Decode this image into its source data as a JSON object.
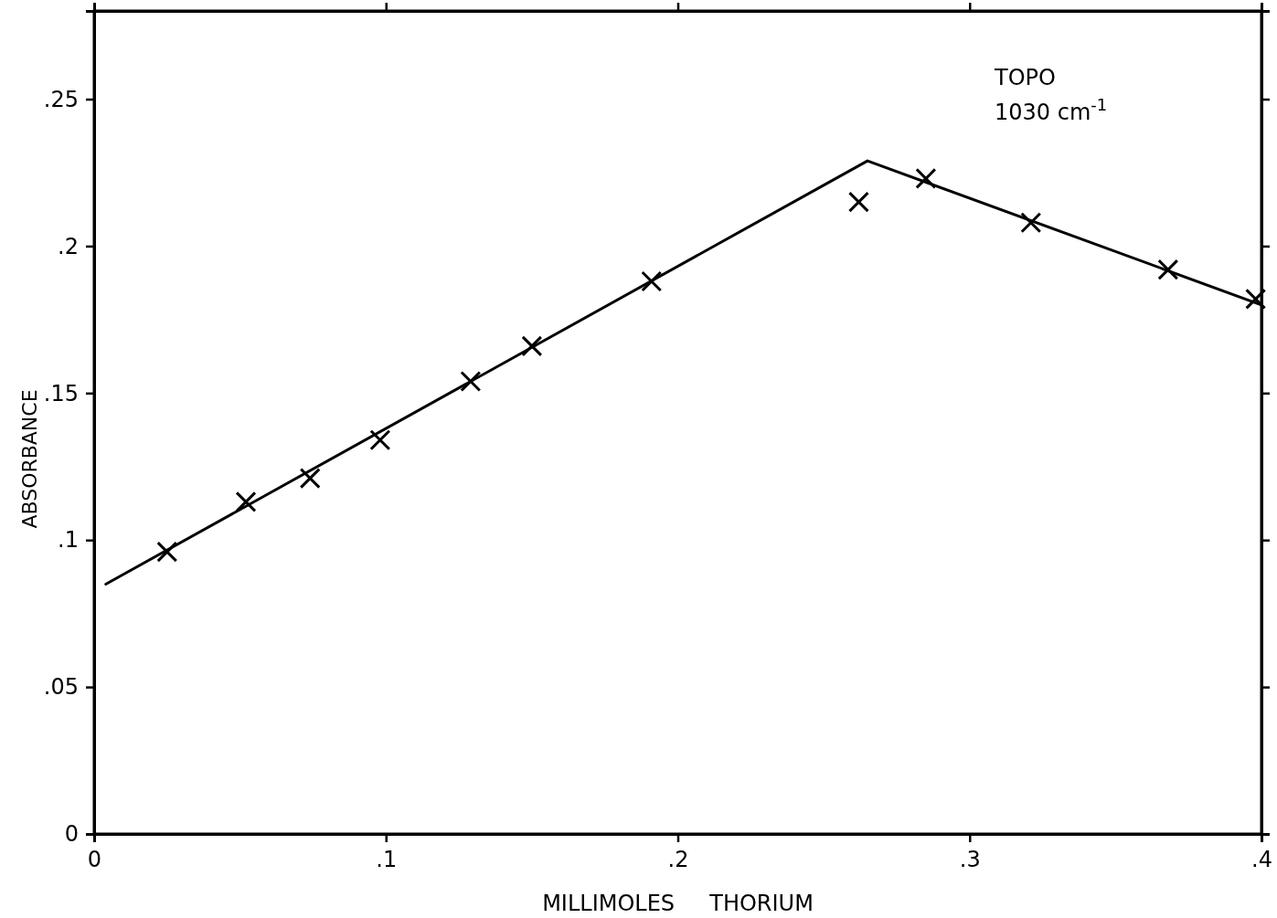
{
  "chart_data": {
    "type": "scatter",
    "xlabel": "MILLIMOLES     THORIUM",
    "ylabel": "ABSORBANCE",
    "annotations": [
      "TOPO",
      "1030 cm$^{-1}$"
    ],
    "xlim": [
      0,
      0.4
    ],
    "xticks": [
      0,
      {
        "value": 0.1,
        "label": ".1"
      },
      {
        "value": 0.2,
        "label": ".2"
      },
      {
        "value": 0.3,
        "label": ".3"
      },
      {
        "value": 0.4,
        "label": ".4"
      }
    ],
    "ylim": [
      0,
      0.28
    ],
    "yticks": [
      0,
      {
        "value": 0.05,
        "label": ".05"
      },
      {
        "value": 0.1,
        "label": ".1"
      },
      {
        "value": 0.15,
        "label": ".15"
      },
      {
        "value": 0.2,
        "label": ".2"
      },
      {
        "value": 0.25,
        "label": ".25"
      }
    ],
    "grid": false,
    "series": [
      {
        "type": "scatter",
        "color": "#000000",
        "marker": "cross",
        "x": [
          0.025,
          0.052,
          0.074,
          0.098,
          0.129,
          0.15,
          0.191,
          0.262,
          0.285,
          0.321,
          0.368,
          0.398
        ],
        "values": [
          0.096,
          0.113,
          0.121,
          0.134,
          0.154,
          0.166,
          0.188,
          0.215,
          0.223,
          0.208,
          0.192,
          0.182
        ]
      },
      {
        "type": "line",
        "color": "#000000",
        "marker": "none",
        "line_style": "solid",
        "x": [
          0.004,
          0.265,
          0.4
        ],
        "values": [
          0.085,
          0.229,
          0.18
        ]
      }
    ]
  }
}
